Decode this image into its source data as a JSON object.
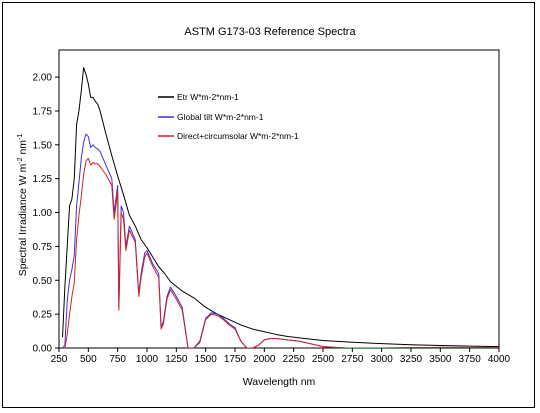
{
  "chart_data": {
    "type": "line",
    "title": "ASTM G173-03 Reference Spectra",
    "xlabel": "Wavelength nm",
    "ylabel": "Spectral Irradiance  W m",
    "ylabel_exp1": "-2",
    "ylabel_mid": " nm",
    "ylabel_exp2": "-1",
    "xlim": [
      250,
      4000
    ],
    "ylim": [
      0,
      2.2
    ],
    "x_ticks": [
      250,
      500,
      750,
      1000,
      1250,
      1500,
      1750,
      2000,
      2250,
      2500,
      2750,
      3000,
      3250,
      3500,
      3750,
      4000
    ],
    "x_tick_labels": [
      "250",
      "500",
      "750",
      "1000",
      "1250",
      "1500",
      "1750",
      "2000",
      "2250",
      "2500",
      "2750",
      "3000",
      "3250",
      "3500",
      "3750",
      "4000"
    ],
    "y_ticks": [
      0,
      0.25,
      0.5,
      0.75,
      1.0,
      1.25,
      1.5,
      1.75,
      2.0
    ],
    "y_tick_labels": [
      "0.00",
      "0.25",
      "0.50",
      "0.75",
      "1.00",
      "1.25",
      "1.50",
      "1.75",
      "2.00"
    ],
    "grid": false,
    "legend_position": "top-left",
    "series": [
      {
        "name": "Etr W*m-2*nm-1",
        "color": "#000000",
        "x": [
          280,
          300,
          320,
          340,
          360,
          380,
          400,
          420,
          440,
          460,
          480,
          500,
          520,
          540,
          560,
          580,
          600,
          650,
          700,
          750,
          800,
          850,
          900,
          950,
          1000,
          1050,
          1100,
          1150,
          1200,
          1300,
          1400,
          1500,
          1600,
          1700,
          1800,
          1900,
          2000,
          2100,
          2200,
          2300,
          2400,
          2500,
          2750,
          3000,
          3250,
          3500,
          3750,
          4000
        ],
        "y": [
          0.08,
          0.45,
          0.75,
          1.05,
          1.1,
          1.25,
          1.65,
          1.75,
          1.9,
          2.07,
          2.02,
          1.95,
          1.85,
          1.85,
          1.82,
          1.8,
          1.75,
          1.58,
          1.42,
          1.27,
          1.13,
          0.98,
          0.9,
          0.8,
          0.74,
          0.67,
          0.6,
          0.55,
          0.49,
          0.42,
          0.37,
          0.3,
          0.25,
          0.21,
          0.17,
          0.14,
          0.12,
          0.1,
          0.085,
          0.075,
          0.065,
          0.055,
          0.042,
          0.032,
          0.024,
          0.018,
          0.014,
          0.01
        ]
      },
      {
        "name": "Global tilt  W*m-2*nm-1",
        "color": "#3a2fd6",
        "x": [
          280,
          300,
          320,
          340,
          360,
          380,
          400,
          420,
          440,
          460,
          480,
          500,
          520,
          540,
          560,
          580,
          600,
          650,
          700,
          720,
          750,
          760,
          780,
          800,
          820,
          850,
          900,
          930,
          950,
          980,
          1000,
          1050,
          1100,
          1120,
          1140,
          1170,
          1200,
          1250,
          1300,
          1350,
          1400,
          1450,
          1500,
          1550,
          1600,
          1650,
          1700,
          1750,
          1800,
          1850,
          1900,
          1950,
          2000,
          2050,
          2100,
          2200,
          2300,
          2400,
          2500,
          2700,
          3000,
          3500,
          4000
        ],
        "y": [
          0,
          0.02,
          0.35,
          0.5,
          0.58,
          0.68,
          1.05,
          1.22,
          1.4,
          1.52,
          1.58,
          1.56,
          1.48,
          1.5,
          1.48,
          1.47,
          1.45,
          1.35,
          1.25,
          1.0,
          1.2,
          0.3,
          1.05,
          1.0,
          0.75,
          0.9,
          0.8,
          0.4,
          0.55,
          0.7,
          0.72,
          0.62,
          0.55,
          0.15,
          0.2,
          0.38,
          0.45,
          0.38,
          0.3,
          0.0,
          0.0,
          0.05,
          0.22,
          0.26,
          0.25,
          0.22,
          0.18,
          0.15,
          0.05,
          0.0,
          0.0,
          0.02,
          0.06,
          0.07,
          0.07,
          0.06,
          0.05,
          0.03,
          0.01,
          0.0,
          0.0,
          0.005,
          0.003
        ]
      },
      {
        "name": "Direct+circumsolar W*m-2*nm-1",
        "color": "#d42020",
        "x": [
          280,
          300,
          320,
          340,
          360,
          380,
          400,
          420,
          440,
          460,
          480,
          500,
          520,
          540,
          560,
          580,
          600,
          650,
          700,
          720,
          750,
          760,
          780,
          800,
          820,
          850,
          900,
          930,
          950,
          980,
          1000,
          1050,
          1100,
          1120,
          1140,
          1170,
          1200,
          1250,
          1300,
          1350,
          1400,
          1450,
          1500,
          1550,
          1600,
          1650,
          1700,
          1750,
          1800,
          1850,
          1900,
          1950,
          2000,
          2050,
          2100,
          2200,
          2300,
          2400,
          2500,
          2700,
          3000,
          3500,
          4000
        ],
        "y": [
          0,
          0.0,
          0.1,
          0.25,
          0.38,
          0.48,
          0.8,
          0.98,
          1.12,
          1.28,
          1.38,
          1.4,
          1.35,
          1.37,
          1.36,
          1.36,
          1.34,
          1.28,
          1.2,
          0.95,
          1.15,
          0.28,
          1.0,
          0.95,
          0.72,
          0.87,
          0.78,
          0.38,
          0.52,
          0.67,
          0.7,
          0.6,
          0.52,
          0.14,
          0.18,
          0.36,
          0.43,
          0.36,
          0.28,
          0.0,
          0.0,
          0.04,
          0.21,
          0.25,
          0.24,
          0.21,
          0.17,
          0.14,
          0.05,
          0.0,
          0.0,
          0.02,
          0.06,
          0.07,
          0.07,
          0.06,
          0.05,
          0.03,
          0.01,
          0.0,
          0.0,
          0.005,
          0.003
        ]
      }
    ]
  }
}
